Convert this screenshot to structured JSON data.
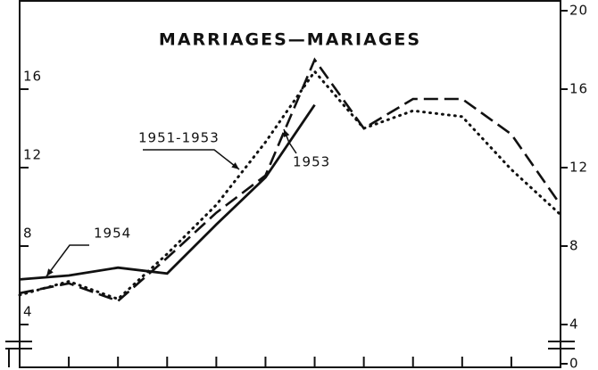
{
  "chart_data": {
    "type": "line",
    "title": "MARRIAGES—MARIAGES",
    "categories": [
      null,
      null,
      null,
      null,
      null,
      null,
      null,
      null,
      null,
      null,
      null,
      null
    ],
    "series": [
      {
        "name": "1954",
        "color": "#111",
        "values": [
          6.3,
          6.5,
          6.9,
          6.6,
          9.1,
          11.5,
          15.2,
          null,
          null,
          null,
          null,
          null
        ]
      },
      {
        "name": "1953",
        "color": "#111",
        "values": [
          5.6,
          6.1,
          5.2,
          7.4,
          9.7,
          11.6,
          17.5,
          14.0,
          15.5,
          15.5,
          13.7,
          10.1
        ]
      },
      {
        "name": "1951-1953",
        "color": "#111",
        "values": [
          5.5,
          6.2,
          5.3,
          7.6,
          10.1,
          13.3,
          16.9,
          14.0,
          14.9,
          14.6,
          11.9,
          9.6
        ]
      }
    ],
    "ylim": [
      0,
      20
    ],
    "yticks": [
      0,
      4,
      8,
      12,
      16,
      20
    ]
  }
}
